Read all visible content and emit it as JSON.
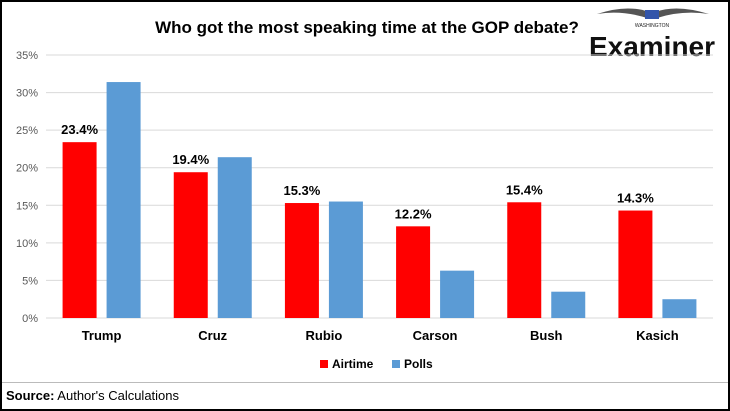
{
  "chart_data": {
    "type": "bar",
    "title": "Who got the most speaking time at the GOP debate?",
    "categories": [
      "Trump",
      "Cruz",
      "Rubio",
      "Carson",
      "Bush",
      "Kasich"
    ],
    "series": [
      {
        "name": "Airtime",
        "color": "#ff0000",
        "values": [
          23.4,
          19.4,
          15.3,
          12.2,
          15.4,
          14.3
        ],
        "labels": [
          "23.4%",
          "19.4%",
          "15.3%",
          "12.2%",
          "15.4%",
          "14.3%"
        ]
      },
      {
        "name": "Polls",
        "color": "#5b9bd5",
        "values": [
          31.4,
          21.4,
          15.5,
          6.3,
          3.5,
          2.5
        ]
      }
    ],
    "ylim": [
      0,
      35
    ],
    "yticks": [
      "0%",
      "5%",
      "10%",
      "15%",
      "20%",
      "25%",
      "30%",
      "35%"
    ],
    "grid": true,
    "legend": "bottom"
  },
  "logo": {
    "text": "Examiner",
    "subtext": "WASHINGTON"
  },
  "source": {
    "label": "Source:",
    "text": " Author's Calculations"
  }
}
